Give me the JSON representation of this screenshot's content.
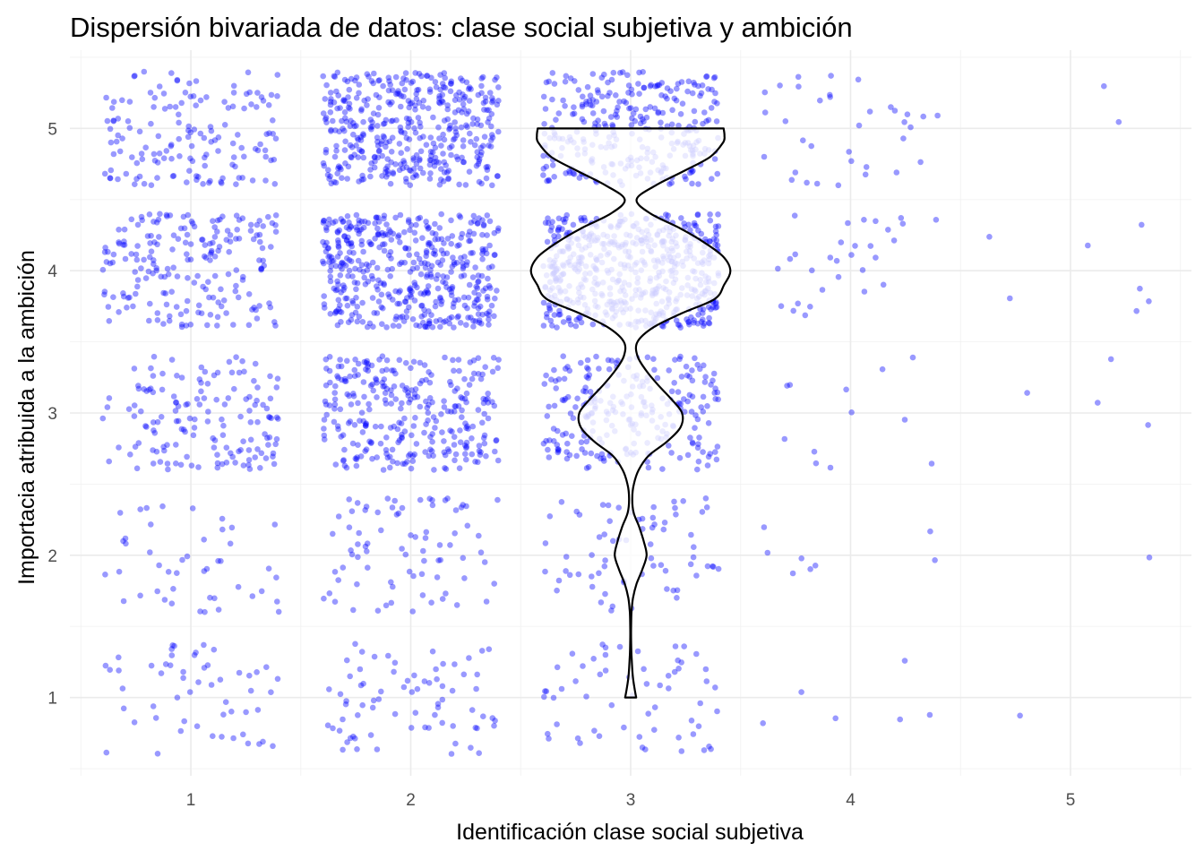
{
  "chart_data": {
    "type": "scatter",
    "title": "Dispersión bivariada de datos: clase social subjetiva y ambición",
    "xlabel": "Identificación clase social subjetiva",
    "ylabel": "Importacia atribuida a la ambición",
    "x_ticks": [
      1,
      2,
      3,
      4,
      5
    ],
    "y_ticks": [
      1,
      2,
      3,
      4,
      5
    ],
    "xlim": [
      0.45,
      5.55
    ],
    "ylim": [
      0.45,
      5.55
    ],
    "grid": true,
    "point_color": "#0000ff",
    "point_alpha": 0.4,
    "jitter_width": 0.4,
    "jitter_height": 0.4,
    "counts": {
      "1": {
        "1": 55,
        "2": 45,
        "3": 150,
        "4": 200,
        "5": 150
      },
      "2": {
        "1": 75,
        "2": 80,
        "3": 300,
        "4": 460,
        "5": 420
      },
      "3": {
        "1": 60,
        "2": 70,
        "3": 250,
        "4": 560,
        "5": 300
      },
      "4": {
        "1": 6,
        "2": 8,
        "3": 12,
        "4": 30,
        "5": 35
      },
      "5": {
        "1": 1,
        "2": 1,
        "3": 4,
        "4": 7,
        "5": 2
      }
    },
    "violin": {
      "x_center": 3,
      "y": [
        1.0,
        1.05,
        1.15,
        1.3,
        1.4,
        1.5,
        1.6,
        1.7,
        1.8,
        1.9,
        2.0,
        2.1,
        2.2,
        2.3,
        2.4,
        2.5,
        2.6,
        2.7,
        2.8,
        2.9,
        3.0,
        3.1,
        3.2,
        3.3,
        3.4,
        3.5,
        3.6,
        3.7,
        3.8,
        3.9,
        4.0,
        4.1,
        4.2,
        4.3,
        4.4,
        4.5,
        4.6,
        4.7,
        4.8,
        4.9,
        4.95,
        5.0
      ],
      "half_width": [
        0.26,
        0.2,
        0.1,
        0.04,
        0.02,
        0.02,
        0.04,
        0.11,
        0.28,
        0.55,
        0.75,
        0.61,
        0.4,
        0.14,
        0.075,
        0.15,
        0.38,
        0.85,
        1.72,
        2.35,
        2.42,
        1.9,
        1.27,
        0.72,
        0.32,
        0.32,
        1.05,
        2.4,
        3.95,
        4.4,
        4.7,
        4.35,
        3.45,
        2.3,
        0.95,
        0.28,
        1.18,
        2.5,
        3.75,
        4.35,
        4.42,
        4.38
      ],
      "density_scale": 0.0965
    }
  }
}
